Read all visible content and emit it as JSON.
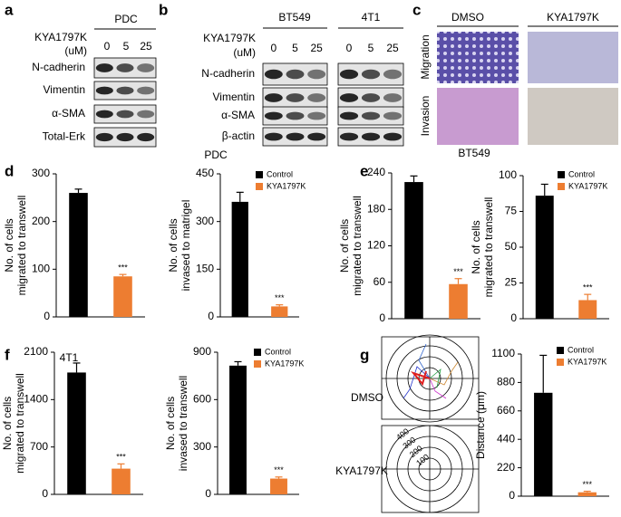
{
  "blot_a": {
    "panel": "a",
    "cell_line": "PDC",
    "treatment": "KYA1797K",
    "unit": "(uM)",
    "doses": [
      "0",
      "5",
      "25"
    ],
    "proteins": [
      "N-cadherin",
      "Vimentin",
      "α-SMA",
      "Total-Erk"
    ]
  },
  "blot_b": {
    "panel": "b",
    "treatment": "KYA1797K",
    "unit": "(uM)",
    "cell_lines": [
      "BT549",
      "4T1"
    ],
    "doses": [
      "0",
      "5",
      "25"
    ],
    "proteins": [
      "N-cadherin",
      "Vimentin",
      "α-SMA",
      "β-actin"
    ]
  },
  "images_c": {
    "panel": "c",
    "conditions": [
      "DMSO",
      "KYA1797K"
    ],
    "assays": [
      "Migration",
      "Invasion"
    ]
  },
  "tracking_g": {
    "conditions": [
      "DMSO",
      "KYA1797K"
    ],
    "ring_labels": [
      "400",
      "300",
      "200",
      "100"
    ]
  },
  "chart_data": [
    {
      "type": "bar",
      "panel": "d",
      "title": "PDC",
      "ylabel": [
        "No. of cells",
        "migrated to transwell"
      ],
      "values": [
        260,
        85
      ],
      "errors": [
        8,
        4
      ],
      "significance": [
        null,
        "***"
      ],
      "colors": [
        "#000000",
        "#ed7d31"
      ],
      "ylim": [
        0,
        300
      ],
      "yticks": [
        0,
        100,
        200,
        300
      ]
    },
    {
      "type": "bar",
      "ylabel": [
        "No. of cells",
        "invased to matrigel"
      ],
      "values": [
        362,
        33
      ],
      "errors": [
        30,
        5
      ],
      "significance": [
        null,
        "***"
      ],
      "colors": [
        "#000000",
        "#ed7d31"
      ],
      "legend": [
        "Control",
        "KYA1797K"
      ],
      "ylim": [
        0,
        450
      ],
      "yticks": [
        0,
        150,
        300,
        450
      ]
    },
    {
      "type": "bar",
      "panel": "e",
      "title": "BT549",
      "ylabel": [
        "No. of cells",
        "migrated to transwell"
      ],
      "values": [
        225,
        57
      ],
      "errors": [
        10,
        9
      ],
      "significance": [
        null,
        "***"
      ],
      "colors": [
        "#000000",
        "#ed7d31"
      ],
      "ylim": [
        0,
        240
      ],
      "yticks": [
        0,
        60,
        120,
        180,
        240
      ]
    },
    {
      "type": "bar",
      "ylabel": [
        "No. of cells",
        "migrated to transwell"
      ],
      "values": [
        86,
        13
      ],
      "errors": [
        8,
        4
      ],
      "significance": [
        null,
        "***"
      ],
      "colors": [
        "#000000",
        "#ed7d31"
      ],
      "legend": [
        "Control",
        "KYA1797K"
      ],
      "ylim": [
        0,
        100
      ],
      "yticks": [
        0,
        25,
        50,
        75,
        100
      ]
    },
    {
      "type": "bar",
      "panel": "f",
      "title": "4T1",
      "ylabel": [
        "No. of cells",
        "migrated to transwell"
      ],
      "values": [
        1800,
        380
      ],
      "errors": [
        140,
        70
      ],
      "significance": [
        null,
        "***"
      ],
      "colors": [
        "#000000",
        "#ed7d31"
      ],
      "ylim": [
        0,
        2100
      ],
      "yticks": [
        0,
        700,
        1400,
        2100
      ]
    },
    {
      "type": "bar",
      "ylabel": [
        "No. of cells",
        "invased to transwell"
      ],
      "values": [
        815,
        100
      ],
      "errors": [
        25,
        10
      ],
      "significance": [
        null,
        "***"
      ],
      "colors": [
        "#000000",
        "#ed7d31"
      ],
      "legend": [
        "Control",
        "KYA1797K"
      ],
      "ylim": [
        0,
        900
      ],
      "yticks": [
        0,
        300,
        600,
        900
      ]
    },
    {
      "type": "bar",
      "panel": "g",
      "ylabel": [
        "Distance (μm)"
      ],
      "values": [
        800,
        30
      ],
      "errors": [
        290,
        8
      ],
      "significance": [
        null,
        "***"
      ],
      "colors": [
        "#000000",
        "#ed7d31"
      ],
      "legend": [
        "Control",
        "KYA1797K"
      ],
      "ylim": [
        0,
        1100
      ],
      "yticks": [
        0,
        220,
        440,
        660,
        880,
        1100
      ]
    }
  ]
}
